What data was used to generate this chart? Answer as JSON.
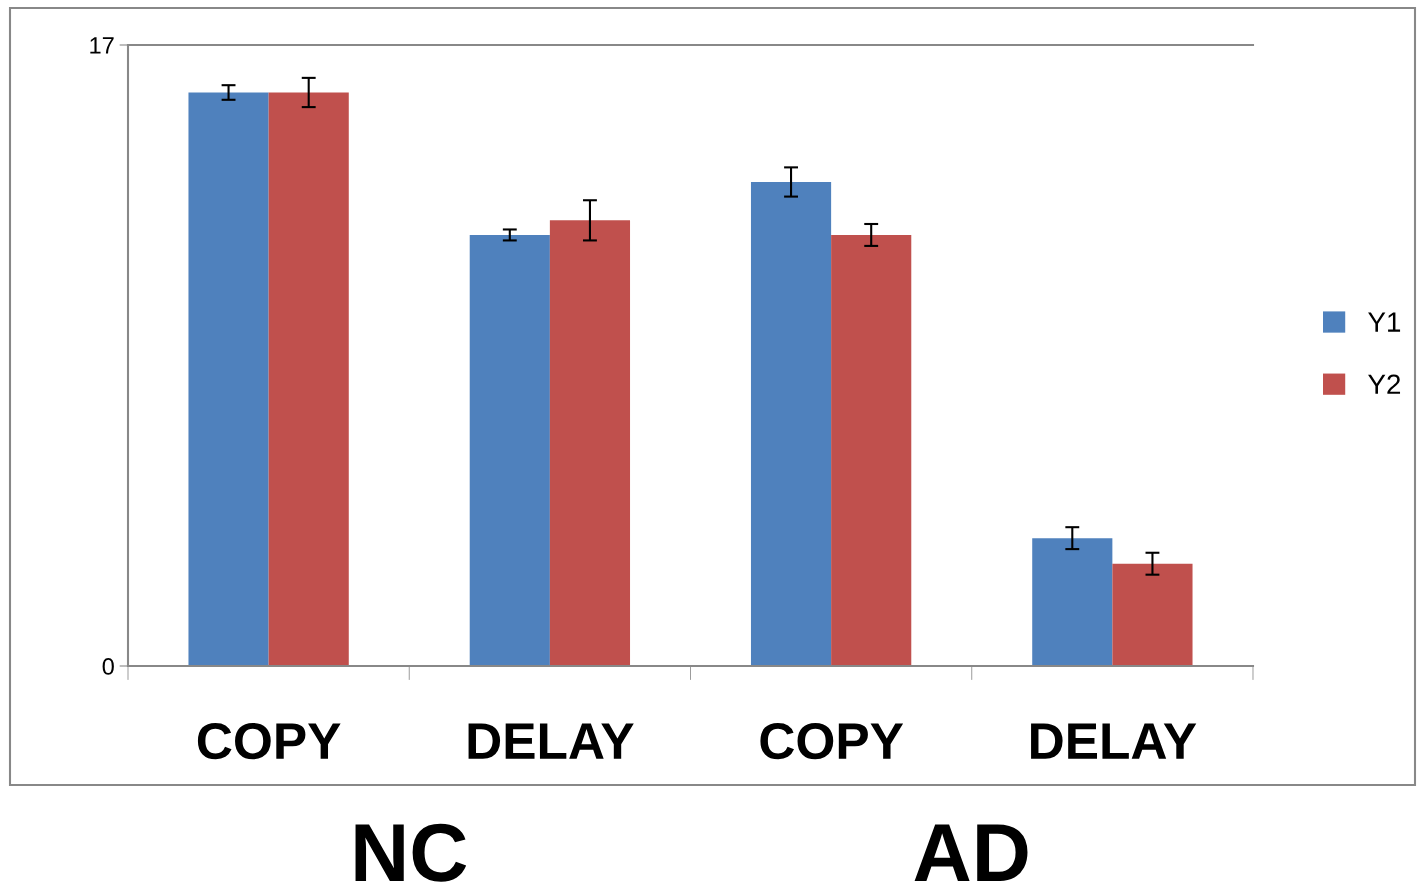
{
  "chart_data": {
    "type": "bar",
    "categories": [
      "COPY",
      "DELAY",
      "COPY",
      "DELAY"
    ],
    "series": [
      {
        "name": "Y1",
        "color": "#4f81bd",
        "values": [
          15.7,
          11.8,
          13.25,
          3.5
        ],
        "errors": [
          0.2,
          0.15,
          0.4,
          0.3
        ]
      },
      {
        "name": "Y2",
        "color": "#c0504d",
        "values": [
          15.7,
          12.2,
          11.8,
          2.8
        ],
        "errors": [
          0.4,
          0.55,
          0.3,
          0.3
        ]
      }
    ],
    "ylim": [
      0,
      17
    ],
    "yticks": [
      0,
      17
    ],
    "legend": "right",
    "annotations": [
      "NC",
      "AD"
    ]
  }
}
